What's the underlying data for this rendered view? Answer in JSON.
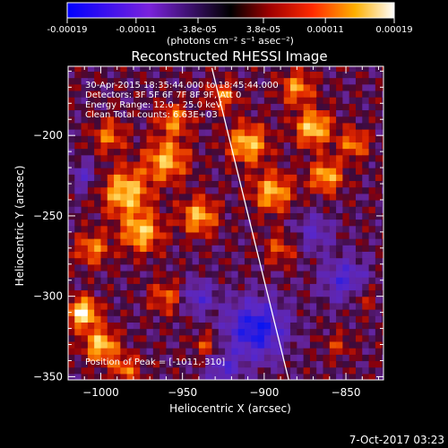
{
  "colorbar": {
    "ticks": [
      "-0.00019",
      "-0.00011",
      "-3.8e-05",
      "3.8e-05",
      "0.00011",
      "0.00019"
    ],
    "tick_values": [
      -0.00019,
      -0.00011,
      -3.8e-05,
      3.8e-05,
      0.00011,
      0.00019
    ],
    "range": [
      -0.00019,
      0.00019
    ],
    "units_label": "(photons cm⁻² s⁻¹ asec⁻²)"
  },
  "chart_data": {
    "type": "heatmap",
    "title": "Reconstructed RHESSI Image",
    "xlabel": "Heliocentric X (arcsec)",
    "ylabel": "Heliocentric Y (arcsec)",
    "xlim": [
      -1020,
      -827
    ],
    "ylim": [
      -352,
      -157
    ],
    "xticks": [
      -1000,
      -950,
      -900,
      -850
    ],
    "yticks": [
      -200,
      -250,
      -300,
      -350
    ],
    "xtick_labels": [
      "−1000",
      "−950",
      "−900",
      "−850"
    ],
    "ytick_labels": [
      "−200",
      "−250",
      "−300",
      "−350"
    ],
    "annotations": [
      "30-Apr-2015 18:35:44.000 to 18:45:44.000",
      "Detectors: 3F 5F 6F 7F 8F 9F, Att 0",
      "Energy Range: 12.0 - 25.0 keV",
      "Clean    Total counts: 6.63E+03"
    ],
    "peak_label": "Position of Peak = [-1011,-310]",
    "peak": [
      -1011,
      -310
    ],
    "limb_line": [
      [
        -932,
        -158
      ],
      [
        -885,
        -352
      ]
    ],
    "grid": false
  },
  "footer": {
    "timestamp": "7-Oct-2017 03:23"
  }
}
